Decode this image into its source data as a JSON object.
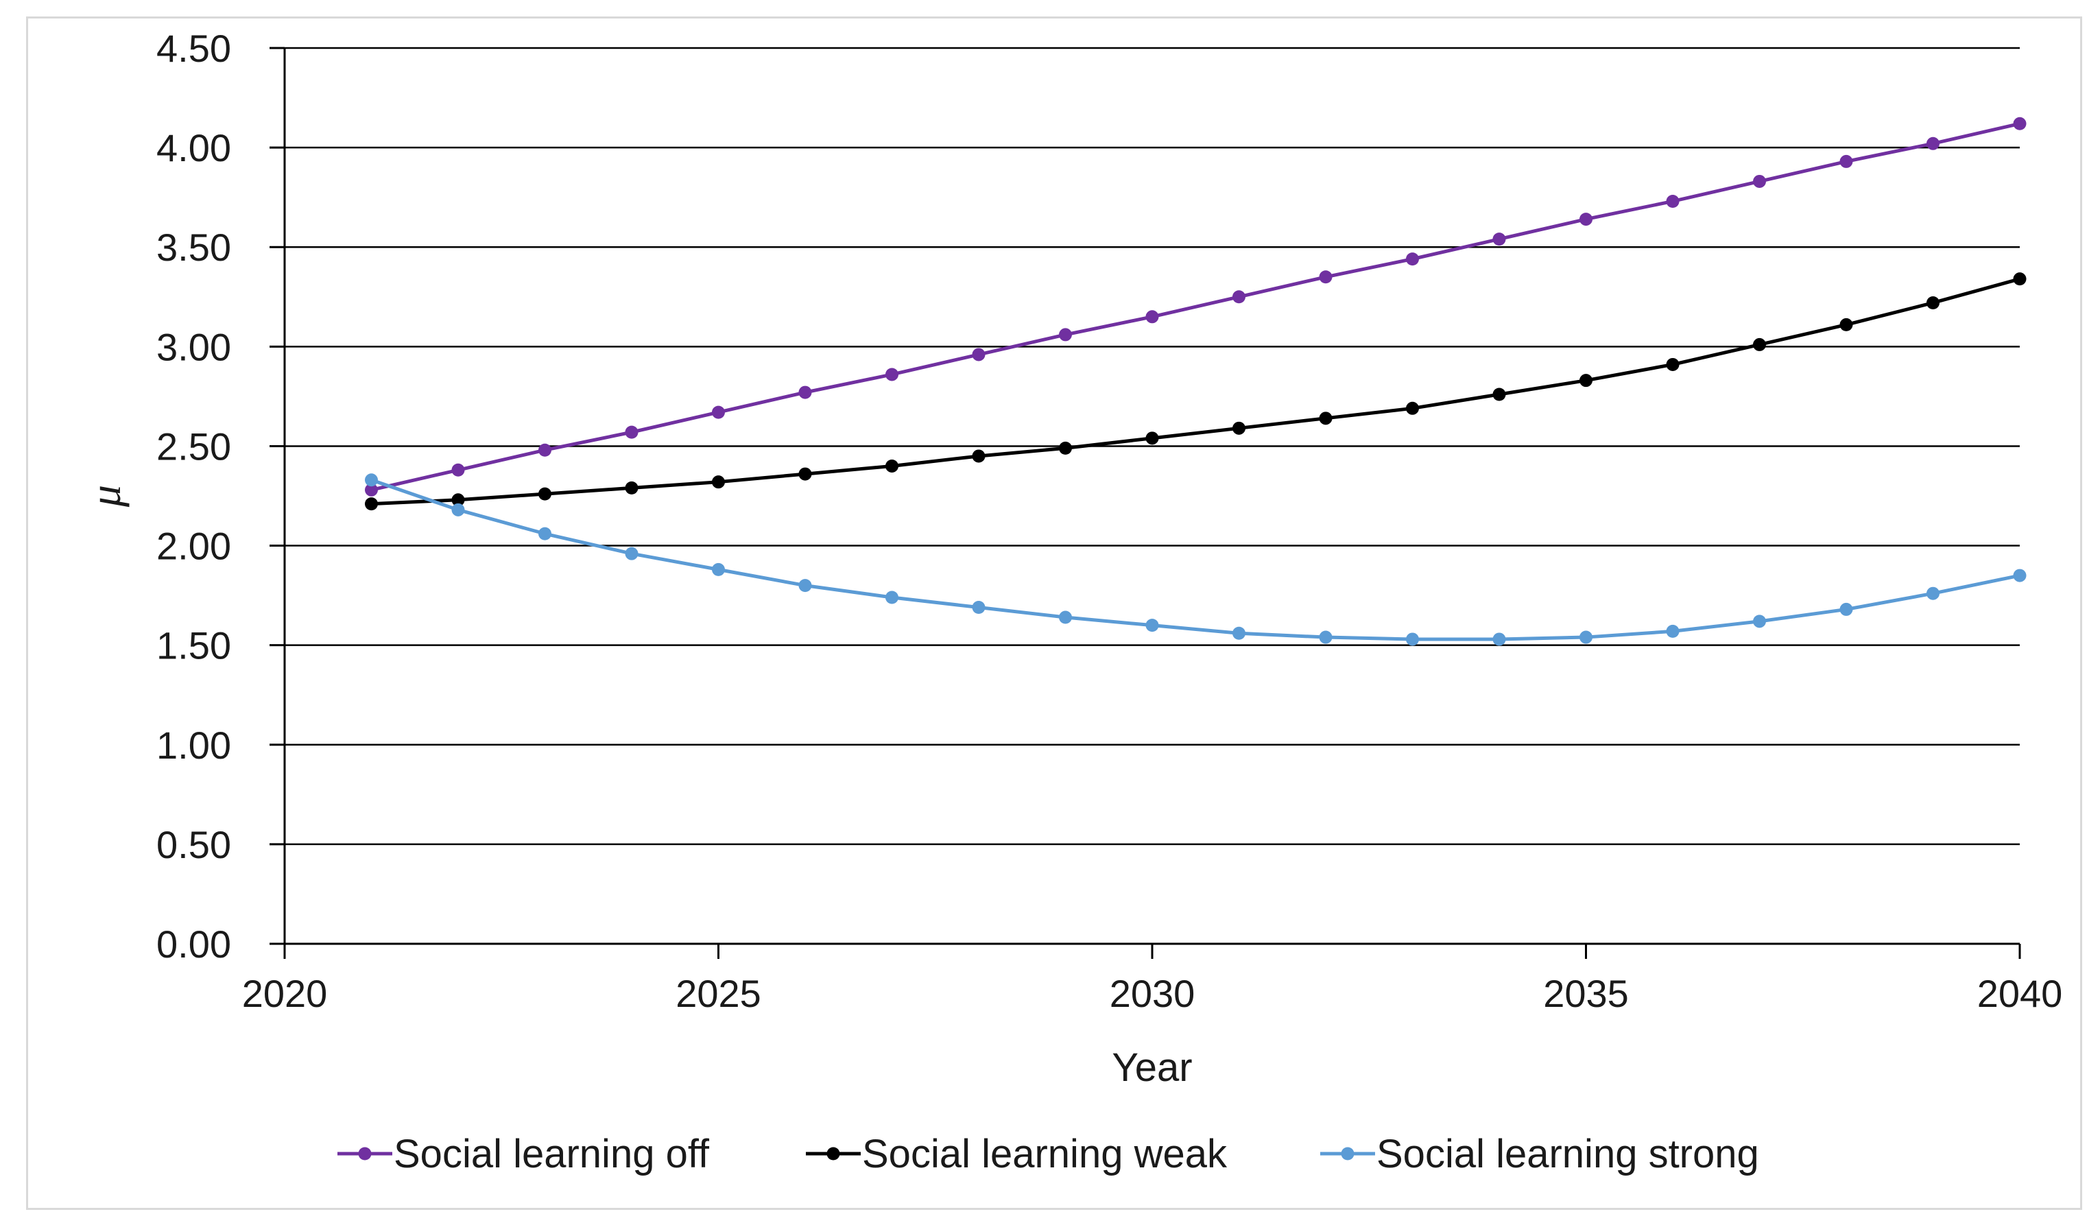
{
  "chart_data": {
    "type": "line",
    "title": "",
    "xlabel": "Year",
    "ylabel": "μ",
    "xlim": [
      2020,
      2040
    ],
    "ylim": [
      0,
      4.5
    ],
    "x_ticks": [
      "2020",
      "2025",
      "2030",
      "2035",
      "2040"
    ],
    "y_ticks": [
      "0.00",
      "0.50",
      "1.00",
      "1.50",
      "2.00",
      "2.50",
      "3.00",
      "3.50",
      "4.00",
      "4.50"
    ],
    "grid": "horizontal",
    "legend_position": "bottom",
    "x": [
      2021,
      2022,
      2023,
      2024,
      2025,
      2026,
      2027,
      2028,
      2029,
      2030,
      2031,
      2032,
      2033,
      2034,
      2035,
      2036,
      2037,
      2038,
      2039,
      2040
    ],
    "series": [
      {
        "name": "Social learning off",
        "color": "#7030a0",
        "values": [
          2.28,
          2.38,
          2.48,
          2.57,
          2.67,
          2.77,
          2.86,
          2.96,
          3.06,
          3.15,
          3.25,
          3.35,
          3.44,
          3.54,
          3.64,
          3.73,
          3.83,
          3.93,
          4.02,
          4.12
        ]
      },
      {
        "name": "Social learning weak",
        "color": "#000000",
        "values": [
          2.21,
          2.23,
          2.26,
          2.29,
          2.32,
          2.36,
          2.4,
          2.45,
          2.49,
          2.54,
          2.59,
          2.64,
          2.69,
          2.76,
          2.83,
          2.91,
          3.01,
          3.11,
          3.22,
          3.34
        ]
      },
      {
        "name": "Social learning strong",
        "color": "#5b9bd5",
        "values": [
          2.33,
          2.18,
          2.06,
          1.96,
          1.88,
          1.8,
          1.74,
          1.69,
          1.64,
          1.6,
          1.56,
          1.54,
          1.53,
          1.53,
          1.54,
          1.57,
          1.62,
          1.68,
          1.76,
          1.85
        ]
      }
    ]
  }
}
